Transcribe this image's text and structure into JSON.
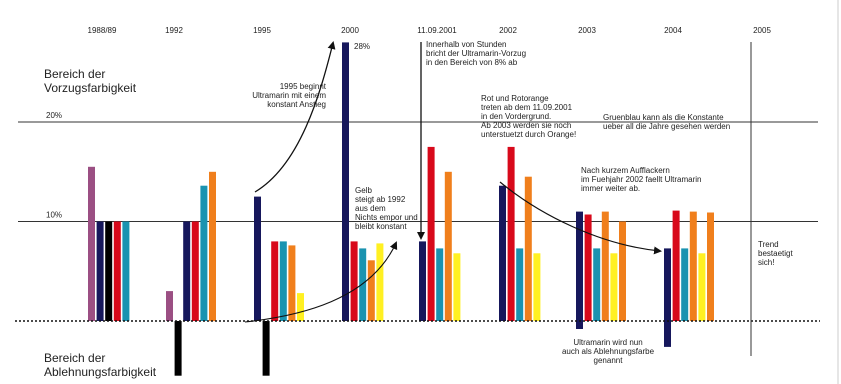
{
  "chart_data": {
    "type": "bar",
    "categories": [
      "1988/89",
      "1992",
      "1995",
      "2000",
      "11.09.2001",
      "2002",
      "2003",
      "2004",
      "2005"
    ],
    "series_colors": {
      "violett": "#9b4f83",
      "ultramarin": "#16175c",
      "rot": "#d8091b",
      "orange": "#f07f1c",
      "gruenblau": "#1a93b0",
      "gelb": "#fff022",
      "schwarz": "#000000"
    },
    "bars": [
      {
        "category": "1988/89",
        "color": "violett",
        "value": 15.5
      },
      {
        "category": "1988/89",
        "color": "ultramarin",
        "value": 10
      },
      {
        "category": "1988/89",
        "color": "schwarz",
        "value": 10
      },
      {
        "category": "1988/89",
        "color": "rot",
        "value": 10
      },
      {
        "category": "1988/89",
        "color": "gruenblau",
        "value": 10
      },
      {
        "category": "1992",
        "color": "violett",
        "value": 3
      },
      {
        "category": "1992",
        "color": "schwarz",
        "value": -5
      },
      {
        "category": "1992",
        "color": "ultramarin",
        "value": 10
      },
      {
        "category": "1992",
        "color": "rot",
        "value": 10
      },
      {
        "category": "1992",
        "color": "gruenblau",
        "value": 13.6
      },
      {
        "category": "1992",
        "color": "orange",
        "value": 15
      },
      {
        "category": "1995",
        "color": "ultramarin",
        "value": 12.5
      },
      {
        "category": "1995",
        "color": "schwarz",
        "value": -5
      },
      {
        "category": "1995",
        "color": "rot",
        "value": 8
      },
      {
        "category": "1995",
        "color": "gruenblau",
        "value": 8
      },
      {
        "category": "1995",
        "color": "orange",
        "value": 7.6
      },
      {
        "category": "1995",
        "color": "gelb",
        "value": 2.8
      },
      {
        "category": "2000",
        "color": "ultramarin",
        "value": 28
      },
      {
        "category": "2000",
        "color": "rot",
        "value": 8
      },
      {
        "category": "2000",
        "color": "gruenblau",
        "value": 7.3
      },
      {
        "category": "2000",
        "color": "orange",
        "value": 6.1
      },
      {
        "category": "2000",
        "color": "gelb",
        "value": 7.8
      },
      {
        "category": "11.09.2001",
        "color": "ultramarin",
        "value": 8
      },
      {
        "category": "11.09.2001",
        "color": "rot",
        "value": 17.5
      },
      {
        "category": "11.09.2001",
        "color": "gruenblau",
        "value": 7.3
      },
      {
        "category": "11.09.2001",
        "color": "orange",
        "value": 15
      },
      {
        "category": "11.09.2001",
        "color": "gelb",
        "value": 6.8
      },
      {
        "category": "2002",
        "color": "ultramarin",
        "value": 13.6
      },
      {
        "category": "2002",
        "color": "rot",
        "value": 17.5
      },
      {
        "category": "2002",
        "color": "gruenblau",
        "value": 7.3
      },
      {
        "category": "2002",
        "color": "orange",
        "value": 14.5
      },
      {
        "category": "2002",
        "color": "gelb",
        "value": 6.8
      },
      {
        "category": "2003",
        "color": "ultramarin",
        "value": 11,
        "negative_extension": -0.8
      },
      {
        "category": "2003",
        "color": "rot",
        "value": 10.7
      },
      {
        "category": "2003",
        "color": "gruenblau",
        "value": 7.3
      },
      {
        "category": "2003",
        "color": "orange",
        "value": 11
      },
      {
        "category": "2003",
        "color": "gelb",
        "value": 6.8
      },
      {
        "category": "2003",
        "color": "orange",
        "value": 10
      },
      {
        "category": "2004",
        "color": "ultramarin",
        "value": 7.3,
        "negative_extension": -2.6
      },
      {
        "category": "2004",
        "color": "rot",
        "value": 11.1
      },
      {
        "category": "2004",
        "color": "gruenblau",
        "value": 7.3
      },
      {
        "category": "2004",
        "color": "orange",
        "value": 11
      },
      {
        "category": "2004",
        "color": "gelb",
        "value": 6.8
      },
      {
        "category": "2004",
        "color": "orange",
        "value": 10.9
      }
    ],
    "reference_lines": [
      {
        "value": 20,
        "label": "20%"
      },
      {
        "value": 10,
        "label": "10%"
      }
    ],
    "zone_labels": {
      "top": [
        "Bereich der",
        "Vorzugsfarbigkeit"
      ],
      "bottom": [
        "Bereich der",
        "Ablehnungsfarbigkeit"
      ]
    },
    "value_label_28": "28%",
    "annotations": {
      "a1995": [
        "1995 beginnt",
        "Ultramarin mit einem",
        "konstant Anstieg"
      ],
      "a911": [
        "Innerhalb von Stunden",
        "bricht der Ultramarin-Vorzug",
        "in den Bereich von 8% ab"
      ],
      "a_rot": [
        "Rot und Rotorange",
        "treten ab dem 11.09.2001",
        "in den Vordergrund.",
        "Ab 2003 werden sie noch",
        "unterstuetzt durch Orange!"
      ],
      "a_gruen": [
        "Gruenblau kann als die Konstante",
        "ueber all die Jahre gesehen werden"
      ],
      "a_gelb": [
        "Gelb",
        "steigt  ab 1992",
        "aus dem",
        "Nichts empor und",
        "bleibt konstant"
      ],
      "a_ultra2002": [
        "Nach kurzem Aufflackern",
        "im Fuehjahr 2002 faellt Ultramarin",
        "immer weiter ab."
      ],
      "a_ablehnung": [
        "Ultramarin wird nun",
        "auch als Ablehnungsfarbe",
        "genannt"
      ],
      "a_trend": [
        "Trend",
        "bestaetigt",
        "sich!"
      ]
    }
  }
}
